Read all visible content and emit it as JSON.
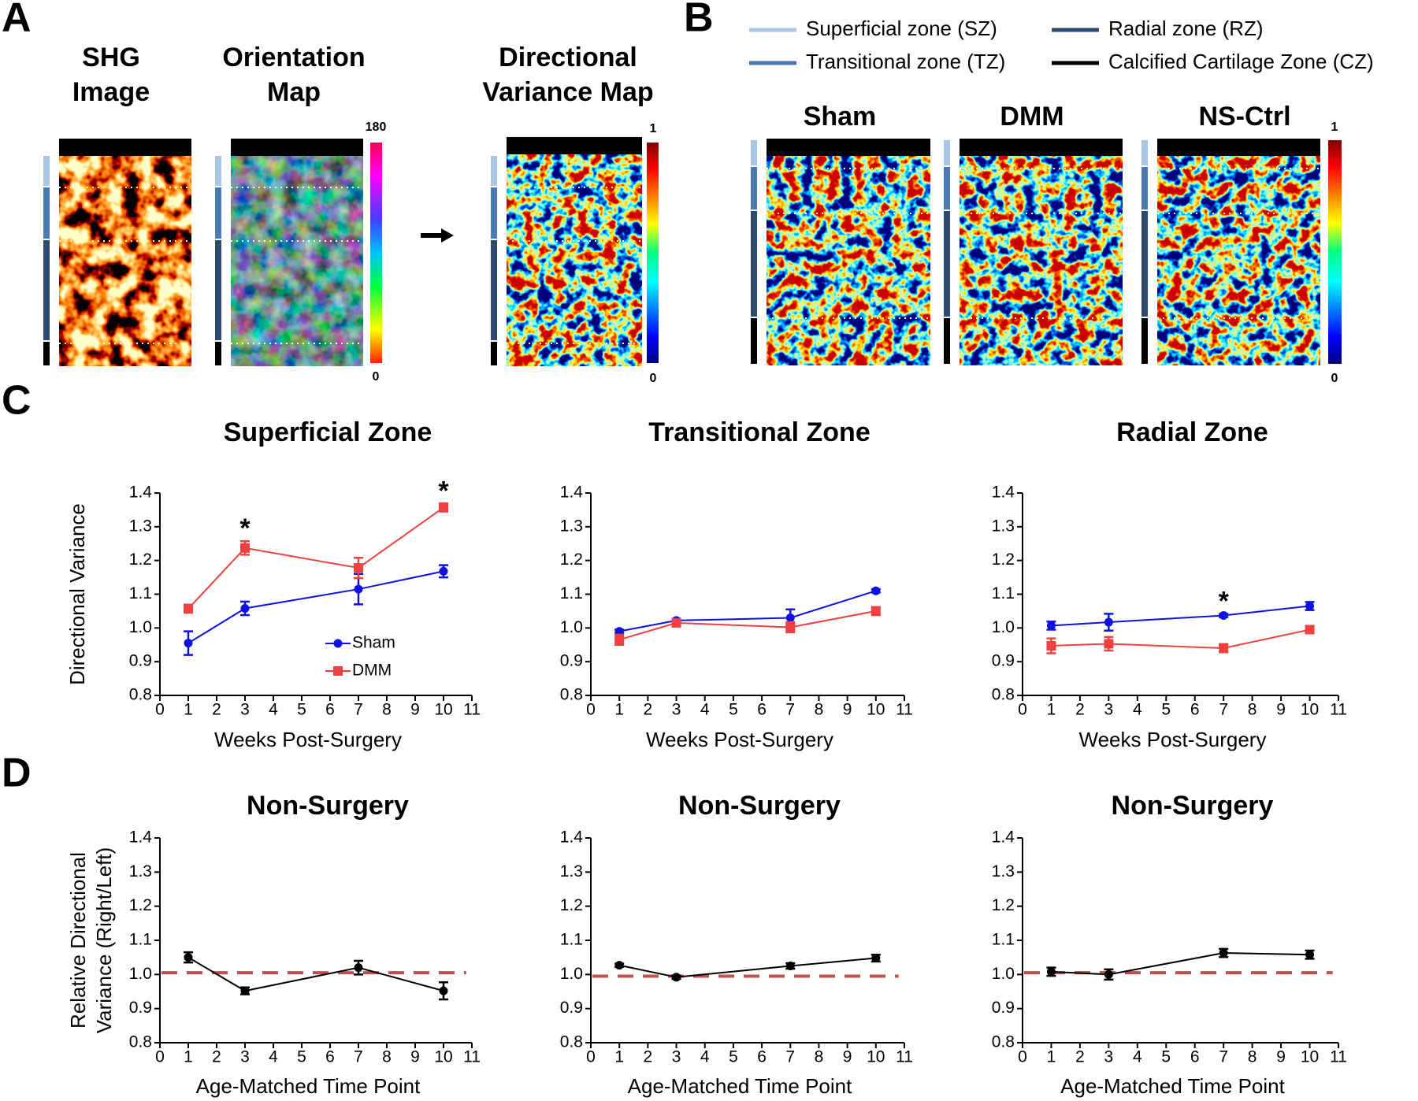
{
  "panel_labels": [
    "A",
    "B",
    "C",
    "D"
  ],
  "panel_a": {
    "image_titles": [
      [
        "SHG",
        "Image"
      ],
      [
        "Orientation",
        "Map"
      ],
      [
        "Directional",
        "Variance Map"
      ]
    ],
    "orientation_colorbar": [
      "180",
      "0"
    ],
    "variance_colorbar": [
      "1",
      "0"
    ]
  },
  "panel_b": {
    "zone_legend": [
      {
        "name": "Superficial zone (SZ)",
        "color": "#a9c6e6"
      },
      {
        "name": "Transitional zone (TZ)",
        "color": "#4a7ab4"
      },
      {
        "name": "Radial zone (RZ)",
        "color": "#2d4a72"
      },
      {
        "name": "Calcified Cartilage Zone (CZ)",
        "color": "#000000"
      }
    ],
    "image_titles": [
      "Sham",
      "DMM",
      "NS-Ctrl"
    ],
    "colorbar": [
      "1",
      "0"
    ]
  },
  "chart_data": [
    {
      "type": "line",
      "title": "Superficial Zone",
      "x_label": "Weeks Post-Surgery",
      "y_label": [
        "Directional Variance"
      ],
      "x": [
        1,
        3,
        7,
        10
      ],
      "series": [
        {
          "name": "Sham",
          "color": "#1010e0",
          "marker": "circle",
          "values": [
            0.955,
            1.058,
            1.115,
            1.168
          ],
          "errors": [
            0.035,
            0.02,
            0.045,
            0.018
          ]
        },
        {
          "name": "DMM",
          "color": "#f04040",
          "marker": "square",
          "values": [
            1.057,
            1.237,
            1.178,
            1.357
          ],
          "errors": [
            0.012,
            0.02,
            0.03,
            0.012
          ]
        }
      ],
      "annotations": [
        {
          "text": "*",
          "x": 3
        },
        {
          "text": "*",
          "x": 10
        }
      ],
      "xlim": [
        0,
        11
      ],
      "xticks": [
        0,
        1,
        2,
        3,
        4,
        5,
        6,
        7,
        8,
        9,
        10,
        11
      ],
      "ylim": [
        0.8,
        1.4
      ],
      "yticks": [
        0.8,
        0.9,
        {
          "value": 1,
          "label": "1.0"
        },
        1.1,
        1.2,
        1.3,
        1.4
      ]
    },
    {
      "type": "line",
      "title": "Transitional Zone",
      "x_label": "Weeks Post-Surgery",
      "x": [
        1,
        3,
        7,
        10
      ],
      "series": [
        {
          "color": "#1010e0",
          "marker": "circle",
          "values": [
            0.99,
            1.022,
            1.03,
            1.11
          ],
          "errors": [
            0.005,
            0.005,
            0.025,
            0.005
          ]
        },
        {
          "color": "#f04040",
          "marker": "square",
          "values": [
            0.965,
            1.015,
            1.002,
            1.05
          ],
          "errors": [
            0.015,
            0.01,
            0.015,
            0.012
          ]
        }
      ],
      "xlim": [
        0,
        11
      ],
      "xticks": [
        0,
        1,
        2,
        3,
        4,
        5,
        6,
        7,
        8,
        9,
        10,
        11
      ],
      "ylim": [
        0.8,
        1.4
      ],
      "yticks": [
        0.8,
        0.9,
        {
          "value": 1,
          "label": "1.0"
        },
        1.1,
        1.2,
        1.3,
        1.4
      ]
    },
    {
      "type": "line",
      "title": "Radial Zone",
      "x_label": "Weeks Post-Surgery",
      "x": [
        1,
        3,
        7,
        10
      ],
      "series": [
        {
          "color": "#1010e0",
          "marker": "circle",
          "values": [
            1.007,
            1.017,
            1.037,
            1.065
          ],
          "errors": [
            0.012,
            0.025,
            0.005,
            0.012
          ]
        },
        {
          "color": "#f04040",
          "marker": "square",
          "values": [
            0.947,
            0.953,
            0.94,
            0.995
          ],
          "errors": [
            0.022,
            0.02,
            0.012,
            0.01
          ]
        }
      ],
      "annotations": [
        {
          "text": "*",
          "x": 7
        }
      ],
      "xlim": [
        0,
        11
      ],
      "xticks": [
        0,
        1,
        2,
        3,
        4,
        5,
        6,
        7,
        8,
        9,
        10,
        11
      ],
      "ylim": [
        0.8,
        1.4
      ],
      "yticks": [
        0.8,
        0.9,
        {
          "value": 1,
          "label": "1.0"
        },
        1.1,
        1.2,
        1.3,
        1.4
      ]
    },
    {
      "type": "line",
      "title": "Non-Surgery",
      "x_label": "Age-Matched Time Point",
      "y_label": [
        "Relative Directional",
        "Variance (Right/Left)"
      ],
      "x": [
        1,
        3,
        7,
        10
      ],
      "series": [
        {
          "color": "#000000",
          "marker": "circle",
          "values": [
            1.05,
            0.952,
            1.02,
            0.952
          ],
          "errors": [
            0.015,
            0.01,
            0.02,
            0.025
          ]
        }
      ],
      "reference_line": 1.005,
      "reference_color": "#c0504d",
      "xlim": [
        0,
        11
      ],
      "xticks": [
        0,
        1,
        2,
        3,
        4,
        5,
        6,
        7,
        8,
        9,
        10,
        11
      ],
      "ylim": [
        0.8,
        1.4
      ],
      "yticks": [
        0.8,
        0.9,
        {
          "value": 1,
          "label": "1.0"
        },
        1.1,
        1.2,
        1.3,
        1.4
      ]
    },
    {
      "type": "line",
      "title": "Non-Surgery",
      "x_label": "Age-Matched Time Point",
      "x": [
        1,
        3,
        7,
        10
      ],
      "series": [
        {
          "color": "#000000",
          "marker": "circle",
          "values": [
            1.027,
            0.992,
            1.025,
            1.048
          ],
          "errors": [
            0.005,
            0.005,
            0.008,
            0.01
          ]
        }
      ],
      "reference_line": 0.995,
      "reference_color": "#c0504d",
      "xlim": [
        0,
        11
      ],
      "xticks": [
        0,
        1,
        2,
        3,
        4,
        5,
        6,
        7,
        8,
        9,
        10,
        11
      ],
      "ylim": [
        0.8,
        1.4
      ],
      "yticks": [
        0.8,
        0.9,
        {
          "value": 1,
          "label": "1.0"
        },
        1.1,
        1.2,
        1.3,
        1.4
      ]
    },
    {
      "type": "line",
      "title": "Non-Surgery",
      "x_label": "Age-Matched Time Point",
      "x": [
        1,
        3,
        7,
        10
      ],
      "series": [
        {
          "color": "#000000",
          "marker": "circle",
          "values": [
            1.008,
            1.0,
            1.063,
            1.058
          ],
          "errors": [
            0.012,
            0.015,
            0.012,
            0.012
          ]
        }
      ],
      "reference_line": 1.005,
      "reference_color": "#c0504d",
      "xlim": [
        0,
        11
      ],
      "xticks": [
        0,
        1,
        2,
        3,
        4,
        5,
        6,
        7,
        8,
        9,
        10,
        11
      ],
      "ylim": [
        0.8,
        1.4
      ],
      "yticks": [
        0.8,
        0.9,
        {
          "value": 1,
          "label": "1.0"
        },
        1.1,
        1.2,
        1.3,
        1.4
      ]
    }
  ]
}
